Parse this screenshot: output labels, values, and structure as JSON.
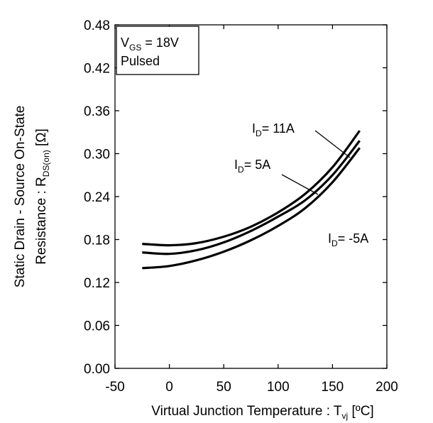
{
  "chart_data": {
    "type": "line",
    "title": "",
    "xlabel": "Virtual  Junction Temperature : T",
    "xlabel_sub": "vj",
    "xlabel_unit": " [ºC]",
    "ylabel_line1": "Static Drain - Source On-State",
    "ylabel_line2_prefix": "Resistance : R",
    "ylabel_line2_sub": "DS(on)",
    "ylabel_line2_unit": " [Ω]",
    "xlim": [
      -50,
      200
    ],
    "ylim": [
      0.0,
      0.48
    ],
    "x_ticks": [
      "-50",
      "0",
      "50",
      "100",
      "150",
      "200"
    ],
    "y_ticks": [
      "0.00",
      "0.06",
      "0.12",
      "0.18",
      "0.24",
      "0.30",
      "0.36",
      "0.42",
      "0.48"
    ],
    "grid": false,
    "legend_box": {
      "line1_prefix": "V",
      "line1_sub": "GS",
      "line1_value": " = 18V",
      "line2": "Pulsed"
    },
    "x": [
      -25,
      0,
      25,
      50,
      75,
      100,
      125,
      150,
      175
    ],
    "series": [
      {
        "name": "I_D= 11A",
        "values": [
          0.174,
          0.172,
          0.175,
          0.184,
          0.198,
          0.218,
          0.244,
          0.281,
          0.332
        ]
      },
      {
        "name": "I_D= 5A",
        "values": [
          0.162,
          0.16,
          0.165,
          0.176,
          0.192,
          0.212,
          0.235,
          0.27,
          0.318
        ]
      },
      {
        "name": "I_D= -5A",
        "values": [
          0.14,
          0.143,
          0.151,
          0.163,
          0.179,
          0.199,
          0.224,
          0.26,
          0.308
        ]
      }
    ],
    "annotations": [
      {
        "prefix": "I",
        "sub": "D",
        "text": "= 11A"
      },
      {
        "prefix": "I",
        "sub": "D",
        "text": "= 5A"
      },
      {
        "prefix": "I",
        "sub": "D",
        "text": "= -5A"
      }
    ]
  }
}
